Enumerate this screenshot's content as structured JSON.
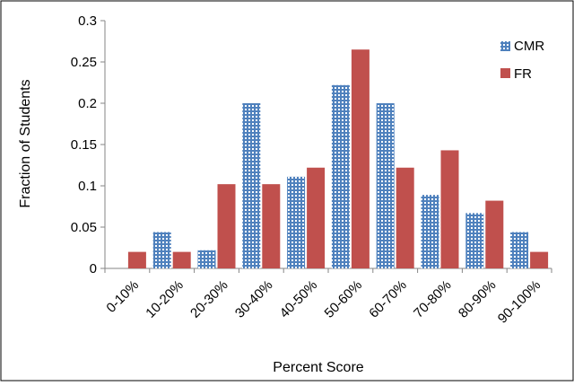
{
  "chart_data": {
    "type": "bar",
    "title": "",
    "xlabel": "Percent Score",
    "ylabel": "Fraction of Students",
    "categories": [
      "0-10%",
      "10-20%",
      "20-30%",
      "30-40%",
      "40-50%",
      "50-60%",
      "60-70%",
      "70-80%",
      "80-90%",
      "90-100%"
    ],
    "series": [
      {
        "name": "CMR",
        "color": "#4f81bd",
        "pattern": "dotted",
        "values": [
          0,
          0.044,
          0.022,
          0.2,
          0.111,
          0.222,
          0.2,
          0.089,
          0.067,
          0.044
        ]
      },
      {
        "name": "FR",
        "color": "#c0504d",
        "pattern": "solid",
        "values": [
          0.02,
          0.02,
          0.102,
          0.102,
          0.122,
          0.265,
          0.122,
          0.143,
          0.082,
          0.02
        ]
      }
    ],
    "ylim": [
      0,
      0.3
    ],
    "yticks": [
      "0",
      "0.05",
      "0.1",
      "0.15",
      "0.2",
      "0.25",
      "0.3"
    ],
    "yticks_values": [
      0,
      0.05,
      0.1,
      0.15,
      0.2,
      0.25,
      0.3
    ],
    "grid": false,
    "legend_position": "top-right"
  }
}
